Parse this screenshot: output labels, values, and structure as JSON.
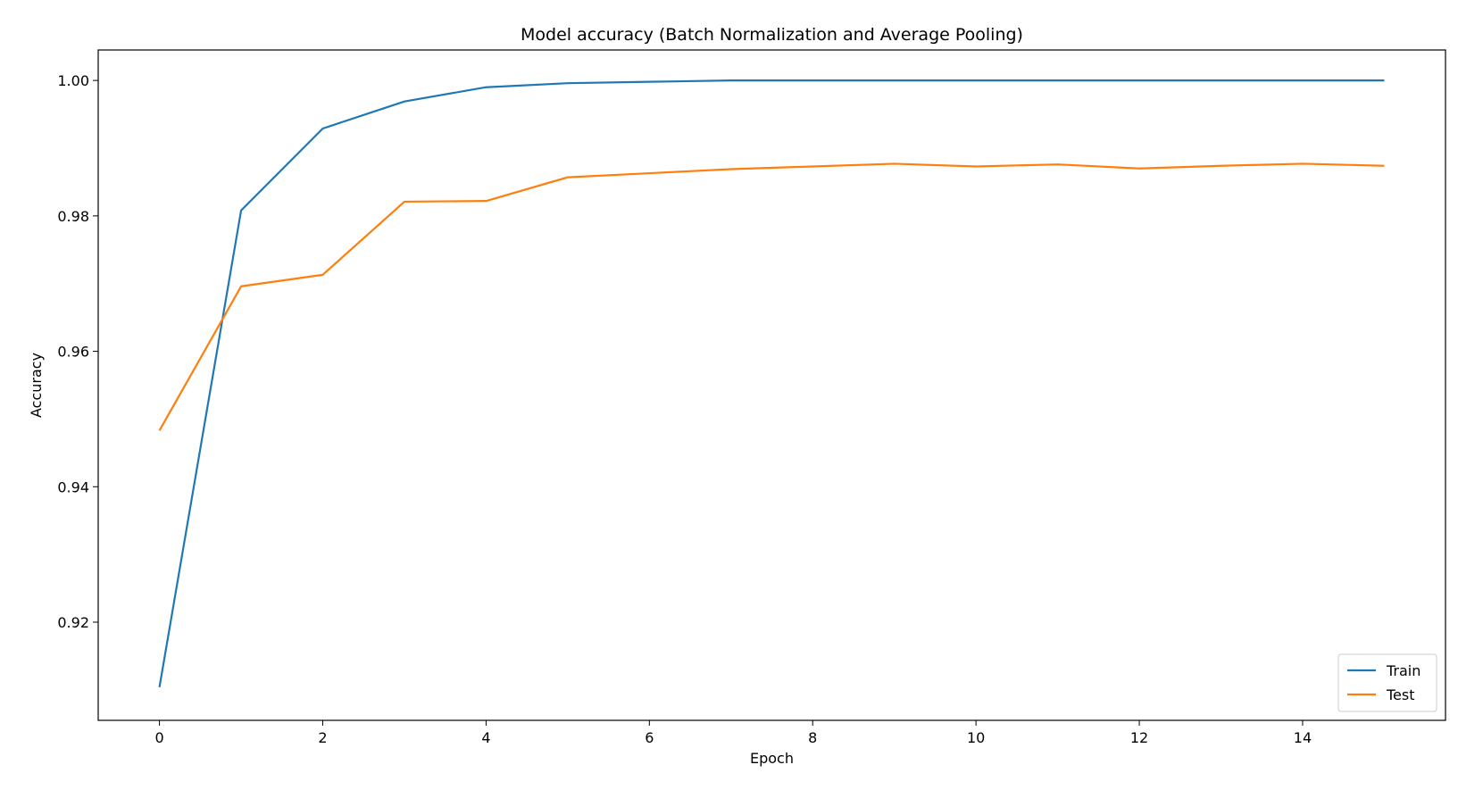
{
  "chart_data": {
    "type": "line",
    "title": "Model accuracy (Batch Normalization and Average Pooling)",
    "xlabel": "Epoch",
    "ylabel": "Accuracy",
    "x": [
      0,
      1,
      2,
      3,
      4,
      5,
      6,
      7,
      8,
      9,
      10,
      11,
      12,
      13,
      14,
      15
    ],
    "xlim": [
      -0.75,
      15.75
    ],
    "ylim": [
      0.9055,
      1.0045
    ],
    "xticks": [
      0,
      2,
      4,
      6,
      8,
      10,
      12,
      14
    ],
    "xtick_labels": [
      "0",
      "2",
      "4",
      "6",
      "8",
      "10",
      "12",
      "14"
    ],
    "yticks": [
      0.92,
      0.94,
      0.96,
      0.98,
      1.0
    ],
    "ytick_labels": [
      "0.92",
      "0.94",
      "0.96",
      "0.98",
      "1.00"
    ],
    "grid": false,
    "legend": "lower-right",
    "series": [
      {
        "name": "Train",
        "color": "#1f77b4",
        "values": [
          0.9104,
          0.9808,
          0.9929,
          0.9969,
          0.999,
          0.9996,
          0.9998,
          1.0,
          1.0,
          1.0,
          1.0,
          1.0,
          1.0,
          1.0,
          1.0,
          1.0
        ]
      },
      {
        "name": "Test",
        "color": "#ff7f0e",
        "values": [
          0.9483,
          0.9696,
          0.9713,
          0.9821,
          0.9822,
          0.9857,
          0.9863,
          0.9869,
          0.9873,
          0.9877,
          0.9873,
          0.9876,
          0.987,
          0.9874,
          0.9877,
          0.9874
        ]
      }
    ]
  }
}
